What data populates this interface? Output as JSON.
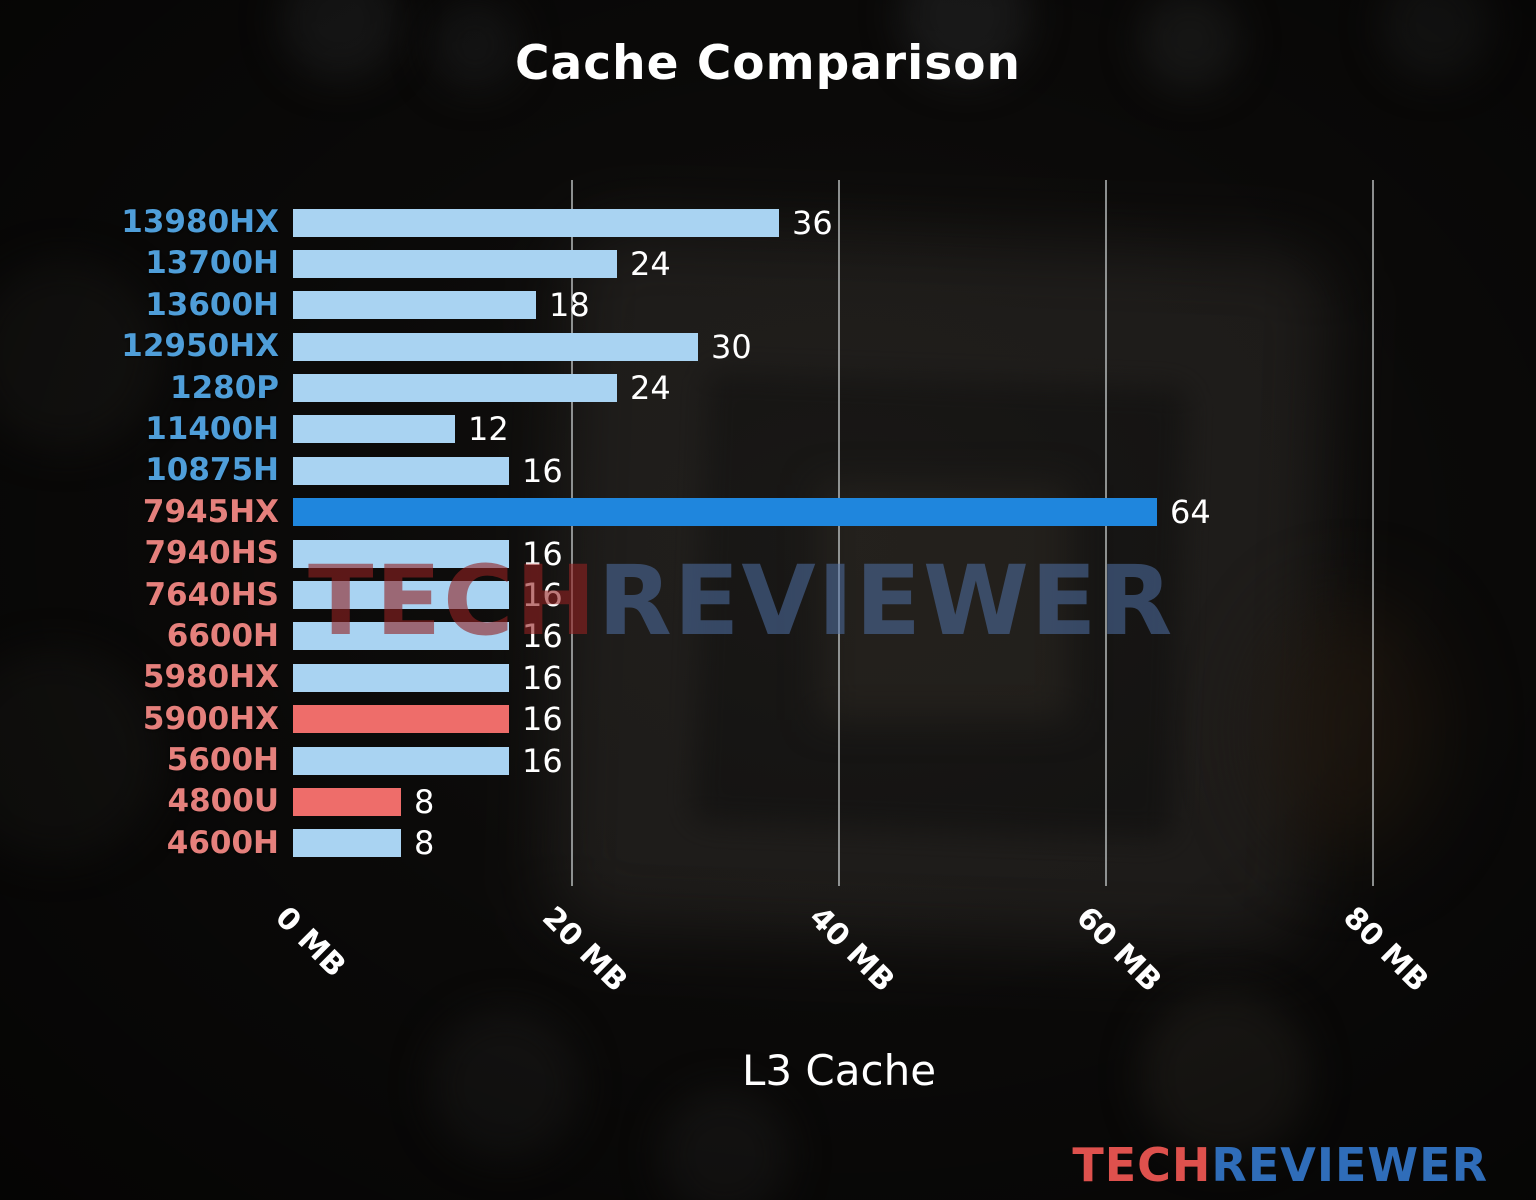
{
  "title": "Cache Comparison",
  "chart_data": {
    "type": "bar",
    "orientation": "horizontal",
    "title": "Cache Comparison",
    "xlabel": "L3 Cache",
    "value_unit": "MB",
    "xlim": [
      0,
      80
    ],
    "grid": true,
    "xticks": [
      {
        "value": 0,
        "label": "0 MB"
      },
      {
        "value": 20,
        "label": "20 MB"
      },
      {
        "value": 40,
        "label": "40 MB"
      },
      {
        "value": 60,
        "label": "60 MB"
      },
      {
        "value": 80,
        "label": "80 MB"
      }
    ],
    "colors": {
      "intel_label": "#4f9ed9",
      "amd_label": "#e5807c",
      "default_bar": "#a9d3f2",
      "highlight_bar": "#1f86dd",
      "amd_highlight_bar": "#ee6d6a",
      "value_text": "#ffffff",
      "gridline": "#acb0b0"
    },
    "bars": [
      {
        "label": "13980HX",
        "value": 36,
        "label_color": "#4f9ed9",
        "bar_color": "#a9d3f2"
      },
      {
        "label": "13700H",
        "value": 24,
        "label_color": "#4f9ed9",
        "bar_color": "#a9d3f2"
      },
      {
        "label": "13600H",
        "value": 18,
        "label_color": "#4f9ed9",
        "bar_color": "#a9d3f2"
      },
      {
        "label": "12950HX",
        "value": 30,
        "label_color": "#4f9ed9",
        "bar_color": "#a9d3f2"
      },
      {
        "label": "1280P",
        "value": 24,
        "label_color": "#4f9ed9",
        "bar_color": "#a9d3f2"
      },
      {
        "label": "11400H",
        "value": 12,
        "label_color": "#4f9ed9",
        "bar_color": "#a9d3f2"
      },
      {
        "label": "10875H",
        "value": 16,
        "label_color": "#4f9ed9",
        "bar_color": "#a9d3f2"
      },
      {
        "label": "7945HX",
        "value": 64,
        "label_color": "#e5807c",
        "bar_color": "#1f86dd"
      },
      {
        "label": "7940HS",
        "value": 16,
        "label_color": "#e5807c",
        "bar_color": "#a9d3f2"
      },
      {
        "label": "7640HS",
        "value": 16,
        "label_color": "#e5807c",
        "bar_color": "#a9d3f2"
      },
      {
        "label": "6600H",
        "value": 16,
        "label_color": "#e5807c",
        "bar_color": "#a9d3f2"
      },
      {
        "label": "5980HX",
        "value": 16,
        "label_color": "#e5807c",
        "bar_color": "#a9d3f2"
      },
      {
        "label": "5900HX",
        "value": 16,
        "label_color": "#e5807c",
        "bar_color": "#ee6d6a"
      },
      {
        "label": "5600H",
        "value": 16,
        "label_color": "#e5807c",
        "bar_color": "#a9d3f2"
      },
      {
        "label": "4800U",
        "value": 8,
        "label_color": "#e5807c",
        "bar_color": "#ee6d6a"
      },
      {
        "label": "4600H",
        "value": 8,
        "label_color": "#e5807c",
        "bar_color": "#a9d3f2"
      }
    ]
  },
  "watermark": {
    "tech": "TECH",
    "reviewer": "REVIEWER"
  },
  "logo": {
    "tech": "TECH",
    "reviewer": "REVIEWER",
    "tech_color": "#de514d",
    "reviewer_color": "#2f6db9"
  }
}
